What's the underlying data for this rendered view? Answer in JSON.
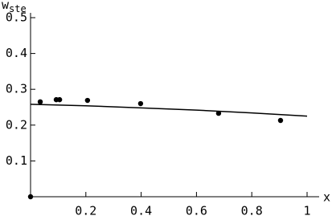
{
  "chart_data": {
    "type": "scatter",
    "ylabel": "w",
    "ylabel_sub": "ste",
    "xlabel": "x",
    "xlim": [
      0,
      1
    ],
    "ylim": [
      0,
      0.5
    ],
    "xticks": [
      0.2,
      0.4,
      0.6,
      0.8,
      1
    ],
    "yticks": [
      0.1,
      0.2,
      0.3,
      0.4,
      0.5
    ],
    "series": [
      {
        "style": "points",
        "color": "#000000",
        "x": [
          0,
          0.035,
          0.093,
          0.105,
          0.206,
          0.398,
          0.68,
          0.904
        ],
        "values": [
          0,
          0.265,
          0.271,
          0.271,
          0.269,
          0.26,
          0.233,
          0.213
        ]
      },
      {
        "style": "line",
        "color": "#000000",
        "x": [
          0,
          0.2,
          0.4,
          0.6,
          0.8,
          1
        ],
        "values": [
          0.258,
          0.254,
          0.248,
          0.242,
          0.234,
          0.225
        ]
      }
    ]
  }
}
